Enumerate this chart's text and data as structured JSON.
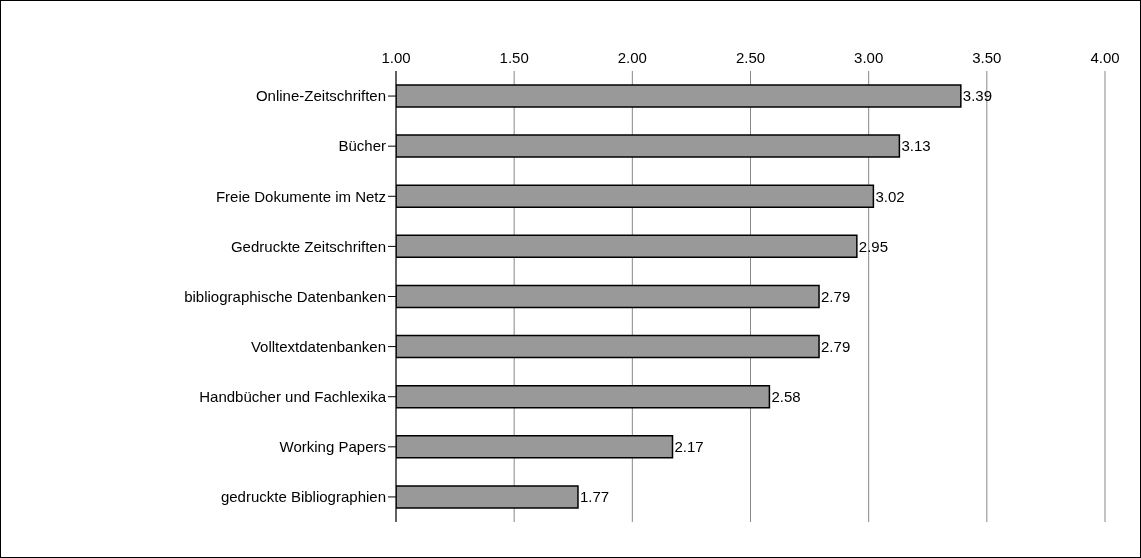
{
  "chart_data": {
    "type": "bar",
    "orientation": "horizontal",
    "categories": [
      "Online-Zeitschriften",
      "Bücher",
      "Freie Dokumente im Netz",
      "Gedruckte Zeitschriften",
      "bibliographische Datenbanken",
      "Volltextdatenbanken",
      "Handbücher und Fachlexika",
      "Working Papers",
      "gedruckte Bibliographien"
    ],
    "values": [
      3.39,
      3.13,
      3.02,
      2.95,
      2.79,
      2.79,
      2.58,
      2.17,
      1.77
    ],
    "color": "#999999",
    "xlim": [
      1,
      4
    ],
    "xticks": [
      {
        "value": 1,
        "label": "1.00"
      },
      {
        "value": 1.5,
        "label": "1.50"
      },
      {
        "value": 2,
        "label": "2.00"
      },
      {
        "value": 2.5,
        "label": "2.50"
      },
      {
        "value": 3,
        "label": "3.00"
      },
      {
        "value": 3.5,
        "label": "3.50"
      },
      {
        "value": 4,
        "label": "4.00"
      }
    ],
    "grid": "x",
    "data_labels": true
  }
}
